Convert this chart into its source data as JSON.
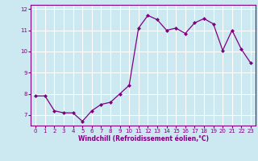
{
  "x": [
    0,
    1,
    2,
    3,
    4,
    5,
    6,
    7,
    8,
    9,
    10,
    11,
    12,
    13,
    14,
    15,
    16,
    17,
    18,
    19,
    20,
    21,
    22,
    23
  ],
  "y": [
    7.9,
    7.9,
    7.2,
    7.1,
    7.1,
    6.7,
    7.2,
    7.5,
    7.6,
    8.0,
    8.4,
    11.1,
    11.7,
    11.5,
    11.0,
    11.1,
    10.85,
    11.35,
    11.55,
    11.3,
    10.05,
    11.0,
    10.1,
    9.45
  ],
  "line_color": "#800080",
  "marker": "D",
  "marker_size": 2.0,
  "bg_color": "#cce8f0",
  "grid_color": "#ffffff",
  "xlabel": "Windchill (Refroidissement éolien,°C)",
  "xlabel_color": "#800080",
  "tick_color": "#800080",
  "ylim": [
    6.5,
    12.2
  ],
  "xlim": [
    -0.5,
    23.5
  ],
  "yticks": [
    7,
    8,
    9,
    10,
    11,
    12
  ],
  "xticks": [
    0,
    1,
    2,
    3,
    4,
    5,
    6,
    7,
    8,
    9,
    10,
    11,
    12,
    13,
    14,
    15,
    16,
    17,
    18,
    19,
    20,
    21,
    22,
    23
  ]
}
